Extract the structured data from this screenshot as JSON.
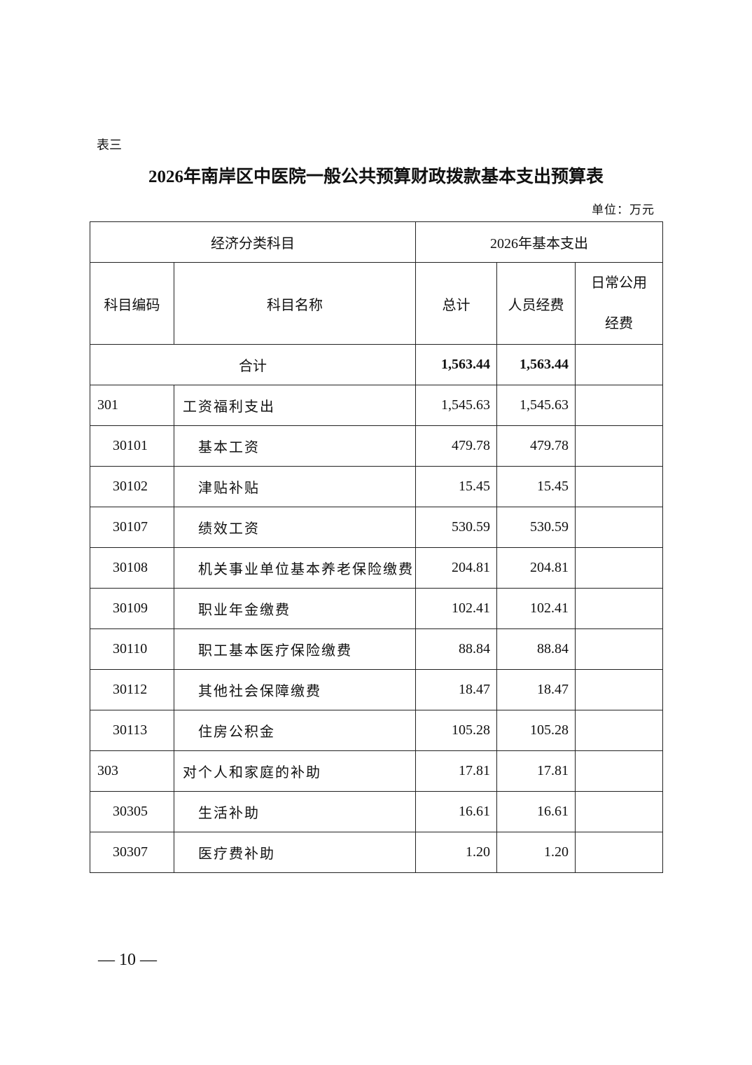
{
  "label": "表三",
  "title": "2026年南岸区中医院一般公共预算财政拨款基本支出预算表",
  "unit": "单位：万元",
  "table": {
    "header": {
      "group1": "经济分类科目",
      "group2": "2026年基本支出",
      "columns": [
        "科目编码",
        "科目名称",
        "总计",
        "人员经费",
        "日常公用经费"
      ]
    },
    "total": {
      "label": "合计",
      "total": "1,563.44",
      "personnel": "1,563.44"
    },
    "rows": [
      {
        "code": "301",
        "name": "工资福利支出",
        "total": "1,545.63",
        "personnel": "1,545.63"
      },
      {
        "code": "30101",
        "name": "基本工资",
        "total": "479.78",
        "personnel": "479.78"
      },
      {
        "code": "30102",
        "name": "津贴补贴",
        "total": "15.45",
        "personnel": "15.45"
      },
      {
        "code": "30107",
        "name": "绩效工资",
        "total": "530.59",
        "personnel": "530.59"
      },
      {
        "code": "30108",
        "name": "机关事业单位基本养老保险缴费",
        "total": "204.81",
        "personnel": "204.81"
      },
      {
        "code": "30109",
        "name": "职业年金缴费",
        "total": "102.41",
        "personnel": "102.41"
      },
      {
        "code": "30110",
        "name": "职工基本医疗保险缴费",
        "total": "88.84",
        "personnel": "88.84"
      },
      {
        "code": "30112",
        "name": "其他社会保障缴费",
        "total": "18.47",
        "personnel": "18.47"
      },
      {
        "code": "30113",
        "name": "住房公积金",
        "total": "105.28",
        "personnel": "105.28"
      },
      {
        "code": "303",
        "name": "对个人和家庭的补助",
        "total": "17.81",
        "personnel": "17.81"
      },
      {
        "code": "30305",
        "name": "生活补助",
        "total": "16.61",
        "personnel": "16.61"
      },
      {
        "code": "30307",
        "name": "医疗费补助",
        "total": "1.20",
        "personnel": "1.20"
      }
    ]
  },
  "footer": {
    "page": "— 10 —"
  }
}
